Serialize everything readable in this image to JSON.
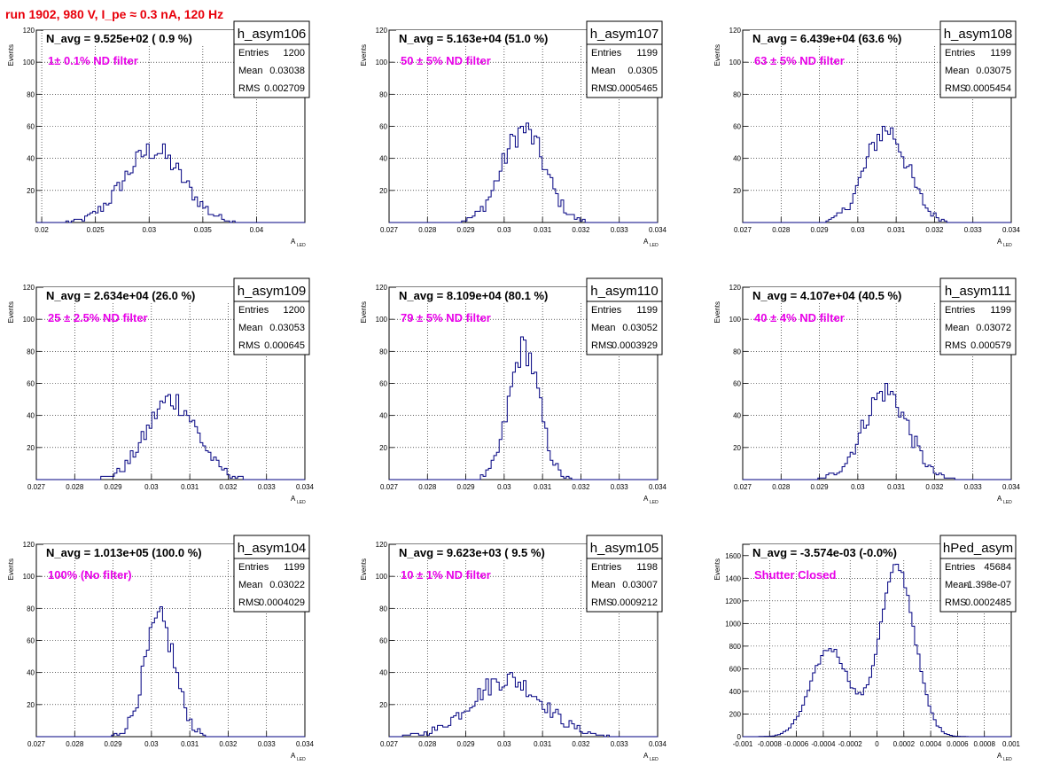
{
  "page": {
    "title": "run 1902,   980 V, I_pe ≈ 0.3 nA, 120 Hz",
    "y_axis_label": "Events",
    "x_axis_label_main": "A",
    "x_axis_label_sub": "LED",
    "stats_labels": {
      "entries": "Entries",
      "mean": "Mean",
      "rms": "RMS"
    }
  },
  "colors": {
    "histogram": "#000080",
    "title": "#e8000b",
    "annotation": "#e800e8",
    "grid": "#000000"
  },
  "chart_data": [
    {
      "type": "histogram",
      "name": "h_asym106",
      "navg": "N_avg = 9.525e+02 ( 0.9 %)",
      "annotation": "1± 0.1% ND filter",
      "entries": "1200",
      "mean": "0.03038",
      "rms": "0.002709",
      "xlim": [
        0.0195,
        0.0445
      ],
      "ylim": [
        0,
        120
      ],
      "xticks": [
        0.02,
        0.025,
        0.03,
        0.035,
        0.04
      ],
      "xtick_labels": [
        "0.02",
        "0.025",
        "0.03",
        "0.035",
        "0.04"
      ],
      "yticks": [
        0,
        20,
        40,
        60,
        80,
        100,
        120
      ],
      "ytick_labels": [
        "",
        "20",
        "40",
        "60",
        "80",
        "100",
        "120"
      ],
      "peak": {
        "mean": 0.0304,
        "sigma": 0.0027,
        "amp": 45
      }
    },
    {
      "type": "histogram",
      "name": "h_asym107",
      "navg": "N_avg = 5.163e+04 (51.0 %)",
      "annotation": "50 ± 5% ND filter",
      "entries": "1199",
      "mean": "0.0305",
      "rms": "0.0005465",
      "xlim": [
        0.027,
        0.034
      ],
      "ylim": [
        0,
        120
      ],
      "xticks": [
        0.027,
        0.028,
        0.029,
        0.03,
        0.031,
        0.032,
        0.033,
        0.034
      ],
      "xtick_labels": [
        "0.027",
        "0.028",
        "0.029",
        "0.03",
        "0.031",
        "0.032",
        "0.033",
        "0.034"
      ],
      "yticks": [
        0,
        20,
        40,
        60,
        80,
        100,
        120
      ],
      "ytick_labels": [
        "",
        "20",
        "40",
        "60",
        "80",
        "100",
        "120"
      ],
      "peak": {
        "mean": 0.0305,
        "sigma": 0.00055,
        "amp": 58
      }
    },
    {
      "type": "histogram",
      "name": "h_asym108",
      "navg": "N_avg = 6.439e+04 (63.6 %)",
      "annotation": "63 ± 5% ND filter",
      "entries": "1199",
      "mean": "0.03075",
      "rms": "0.0005454",
      "xlim": [
        0.027,
        0.034
      ],
      "ylim": [
        0,
        120
      ],
      "xticks": [
        0.027,
        0.028,
        0.029,
        0.03,
        0.031,
        0.032,
        0.033,
        0.034
      ],
      "xtick_labels": [
        "0.027",
        "0.028",
        "0.029",
        "0.03",
        "0.031",
        "0.032",
        "0.033",
        "0.034"
      ],
      "yticks": [
        0,
        20,
        40,
        60,
        80,
        100,
        120
      ],
      "ytick_labels": [
        "",
        "20",
        "40",
        "60",
        "80",
        "100",
        "120"
      ],
      "peak": {
        "mean": 0.03075,
        "sigma": 0.00055,
        "amp": 58
      }
    },
    {
      "type": "histogram",
      "name": "h_asym109",
      "navg": "N_avg = 2.634e+04 (26.0 %)",
      "annotation": "25 ± 2.5% ND filter",
      "entries": "1200",
      "mean": "0.03053",
      "rms": "0.000645",
      "xlim": [
        0.027,
        0.034
      ],
      "ylim": [
        0,
        120
      ],
      "xticks": [
        0.027,
        0.028,
        0.029,
        0.03,
        0.031,
        0.032,
        0.033,
        0.034
      ],
      "xtick_labels": [
        "0.027",
        "0.028",
        "0.029",
        "0.03",
        "0.031",
        "0.032",
        "0.033",
        "0.034"
      ],
      "yticks": [
        0,
        20,
        40,
        60,
        80,
        100,
        120
      ],
      "ytick_labels": [
        "",
        "20",
        "40",
        "60",
        "80",
        "100",
        "120"
      ],
      "peak": {
        "mean": 0.03053,
        "sigma": 0.00065,
        "amp": 50
      }
    },
    {
      "type": "histogram",
      "name": "h_asym110",
      "navg": "N_avg = 8.109e+04 (80.1 %)",
      "annotation": "79 ± 5% ND filter",
      "entries": "1199",
      "mean": "0.03052",
      "rms": "0.0003929",
      "xlim": [
        0.027,
        0.034
      ],
      "ylim": [
        0,
        120
      ],
      "xticks": [
        0.027,
        0.028,
        0.029,
        0.03,
        0.031,
        0.032,
        0.033,
        0.034
      ],
      "xtick_labels": [
        "0.027",
        "0.028",
        "0.029",
        "0.03",
        "0.031",
        "0.032",
        "0.033",
        "0.034"
      ],
      "yticks": [
        0,
        20,
        40,
        60,
        80,
        100,
        120
      ],
      "ytick_labels": [
        "",
        "20",
        "40",
        "60",
        "80",
        "100",
        "120"
      ],
      "peak": {
        "mean": 0.03052,
        "sigma": 0.00039,
        "amp": 82
      }
    },
    {
      "type": "histogram",
      "name": "h_asym111",
      "navg": "N_avg = 4.107e+04 (40.5 %)",
      "annotation": "40 ± 4% ND filter",
      "entries": "1199",
      "mean": "0.03072",
      "rms": "0.000579",
      "xlim": [
        0.027,
        0.034
      ],
      "ylim": [
        0,
        120
      ],
      "xticks": [
        0.027,
        0.028,
        0.029,
        0.03,
        0.031,
        0.032,
        0.033,
        0.034
      ],
      "xtick_labels": [
        "0.027",
        "0.028",
        "0.029",
        "0.03",
        "0.031",
        "0.032",
        "0.033",
        "0.034"
      ],
      "yticks": [
        0,
        20,
        40,
        60,
        80,
        100,
        120
      ],
      "ytick_labels": [
        "",
        "20",
        "40",
        "60",
        "80",
        "100",
        "120"
      ],
      "peak": {
        "mean": 0.03072,
        "sigma": 0.00058,
        "amp": 55
      }
    },
    {
      "type": "histogram",
      "name": "h_asym104",
      "navg": "N_avg = 1.013e+05 (100.0 %)",
      "annotation": "100% (No filter)",
      "entries": "1199",
      "mean": "0.03022",
      "rms": "0.0004029",
      "xlim": [
        0.027,
        0.034
      ],
      "ylim": [
        0,
        120
      ],
      "xticks": [
        0.027,
        0.028,
        0.029,
        0.03,
        0.031,
        0.032,
        0.033,
        0.034
      ],
      "xtick_labels": [
        "0.027",
        "0.028",
        "0.029",
        "0.03",
        "0.031",
        "0.032",
        "0.033",
        "0.034"
      ],
      "yticks": [
        0,
        20,
        40,
        60,
        80,
        100,
        120
      ],
      "ytick_labels": [
        "",
        "20",
        "40",
        "60",
        "80",
        "100",
        "120"
      ],
      "peak": {
        "mean": 0.03022,
        "sigma": 0.0004,
        "amp": 72
      }
    },
    {
      "type": "histogram",
      "name": "h_asym105",
      "navg": "N_avg = 9.623e+03 ( 9.5 %)",
      "annotation": "10 ± 1% ND filter",
      "entries": "1198",
      "mean": "0.03007",
      "rms": "0.0009212",
      "xlim": [
        0.027,
        0.034
      ],
      "ylim": [
        0,
        120
      ],
      "xticks": [
        0.027,
        0.028,
        0.029,
        0.03,
        0.031,
        0.032,
        0.033,
        0.034
      ],
      "xtick_labels": [
        "0.027",
        "0.028",
        "0.029",
        "0.03",
        "0.031",
        "0.032",
        "0.033",
        "0.034"
      ],
      "yticks": [
        0,
        20,
        40,
        60,
        80,
        100,
        120
      ],
      "ytick_labels": [
        "",
        "20",
        "40",
        "60",
        "80",
        "100",
        "120"
      ],
      "peak": {
        "mean": 0.03007,
        "sigma": 0.00092,
        "amp": 36
      }
    },
    {
      "type": "histogram",
      "name": "hPed_asym",
      "navg": "N_avg = -3.574e-03 (-0.0%)",
      "annotation": "Shutter Closed",
      "entries": "45684",
      "mean": "-1.398e-07",
      "rms": "0.0002485",
      "xlim": [
        -0.001,
        0.001
      ],
      "ylim": [
        0,
        1700
      ],
      "xticks": [
        -0.001,
        -0.0008,
        -0.0006,
        -0.0004,
        -0.0002,
        0,
        0.0002,
        0.0004,
        0.0006,
        0.0008,
        0.001
      ],
      "xtick_labels": [
        "-0.001",
        "-0.0008",
        "-0.0006",
        "-0.0004",
        "-0.0002",
        "0",
        "0.0002",
        "0.0004",
        "0.0006",
        "0.0008",
        "0.001"
      ],
      "yticks": [
        0,
        200,
        400,
        600,
        800,
        1000,
        1200,
        1400,
        1600
      ],
      "ytick_labels": [
        "0",
        "200",
        "400",
        "600",
        "800",
        "1000",
        "1200",
        "1400",
        "1600"
      ],
      "peaks": [
        {
          "mean": 0.00015,
          "sigma": 0.00013,
          "amp": 1500
        },
        {
          "mean": -0.00035,
          "sigma": 0.00014,
          "amp": 780
        }
      ]
    }
  ]
}
